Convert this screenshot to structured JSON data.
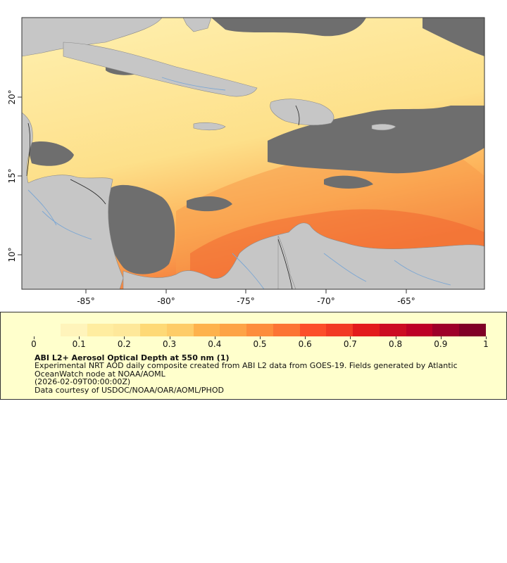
{
  "map": {
    "lon_ticks": [
      "-85°",
      "-80°",
      "-75°",
      "-70°",
      "-65°"
    ],
    "lat_ticks": [
      "20°",
      "15°",
      "10°"
    ]
  },
  "colorbar": {
    "colors": [
      "#ffffcc",
      "#fff4bb",
      "#ffeda0",
      "#fee89a",
      "#fed976",
      "#fecc68",
      "#feb24c",
      "#fda346",
      "#fd8d3c",
      "#fc7434",
      "#fc4e2a",
      "#f23a24",
      "#e31a1c",
      "#cc0c22",
      "#bd0026",
      "#9e0029",
      "#800026"
    ],
    "labels": [
      "0",
      "0.1",
      "0.2",
      "0.3",
      "0.4",
      "0.5",
      "0.6",
      "0.7",
      "0.8",
      "0.9",
      "1"
    ]
  },
  "legend": {
    "title": "ABI L2+ Aerosol Optical Depth at 550 nm (1)",
    "line1": "Experimental NRT AOD daily composite created from ABI L2 data from GOES-19. Fields generated by Atlantic",
    "line2": "OceanWatch node at NOAA/AOML",
    "line3": "(2026-02-09T00:00:00Z)",
    "line4": "Data courtesy of USDOC/NOAA/OAR/AOML/PHOD"
  }
}
